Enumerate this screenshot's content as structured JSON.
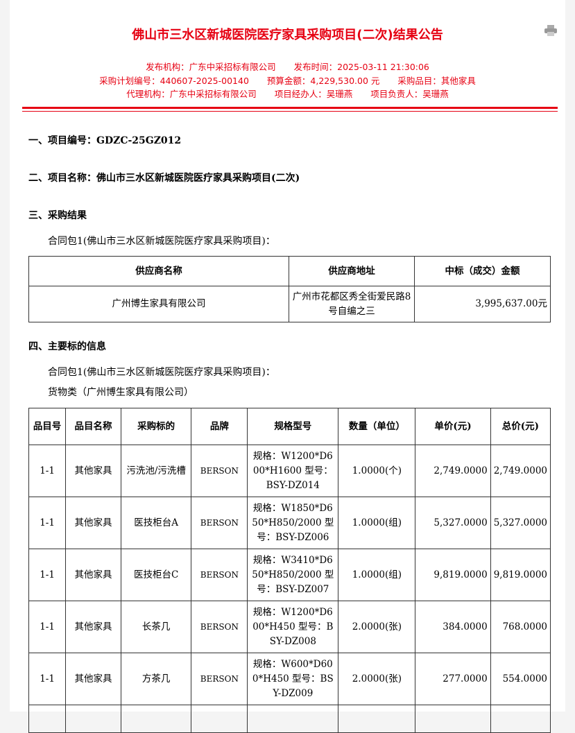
{
  "title": "佛山市三水区新城医院医疗家具采购项目(二次)结果公告",
  "meta": {
    "publisher": "发布机构：广东中采招标有限公司",
    "time": "发布时间：2025-03-11 21:30:06",
    "plan_no": "采购计划编号：440607-2025-00140",
    "budget": "预算金额：4,229,530.00 元",
    "category": "采购品目：其他家具",
    "agency": "代理机构：广东中采招标有限公司",
    "handler": "项目经办人：吴珊燕",
    "owner": "项目负责人：吴珊燕"
  },
  "sections": {
    "s1": "一、项目编号：GDZC-25GZ012",
    "s2": "二、项目名称：佛山市三水区新城医院医疗家具采购项目(二次)",
    "s3": "三、采购结果",
    "s3_sub": "合同包1(佛山市三水区新城医院医疗家具采购项目)：",
    "s4": "四、主要标的信息",
    "s4_sub": "合同包1(佛山市三水区新城医院医疗家具采购项目)：",
    "s4_sub2": "货物类（广州博生家具有限公司）"
  },
  "result_table": {
    "headers": [
      "供应商名称",
      "供应商地址",
      "中标（成交）金额"
    ],
    "rows": [
      [
        "广州博生家具有限公司",
        "广州市花都区秀全街爱民路8号自编之三",
        "3,995,637.00元"
      ]
    ]
  },
  "items_table": {
    "headers": [
      "品目号",
      "品目名称",
      "采购标的",
      "品牌",
      "规格型号",
      "数量（单位）",
      "单价(元)",
      "总价(元)"
    ],
    "rows": [
      [
        "1-1",
        "其他家具",
        "污洗池/污洗槽",
        "BERSON",
        "规格：W1200*D600*H1600 型号：BSY-DZ014",
        "1.0000(个)",
        "2,749.0000",
        "2,749.0000"
      ],
      [
        "1-1",
        "其他家具",
        "医技柜台A",
        "BERSON",
        "规格：W1850*D650*H850/2000 型号：BSY-DZ006",
        "1.0000(组)",
        "5,327.0000",
        "5,327.0000"
      ],
      [
        "1-1",
        "其他家具",
        "医技柜台C",
        "BERSON",
        "规格：W3410*D650*H850/2000 型号：BSY-DZ007",
        "1.0000(组)",
        "9,819.0000",
        "9,819.0000"
      ],
      [
        "1-1",
        "其他家具",
        "长茶几",
        "BERSON",
        "规格：W1200*D600*H450 型号：BSY-DZ008",
        "2.0000(张)",
        "384.0000",
        "768.0000"
      ],
      [
        "1-1",
        "其他家具",
        "方茶几",
        "BERSON",
        "规格：W600*D600*H450 型号：BSY-DZ009",
        "2.0000(张)",
        "277.0000",
        "554.0000"
      ]
    ]
  },
  "icons": {
    "print": "printer-icon"
  },
  "colors": {
    "accent": "#e60012"
  }
}
